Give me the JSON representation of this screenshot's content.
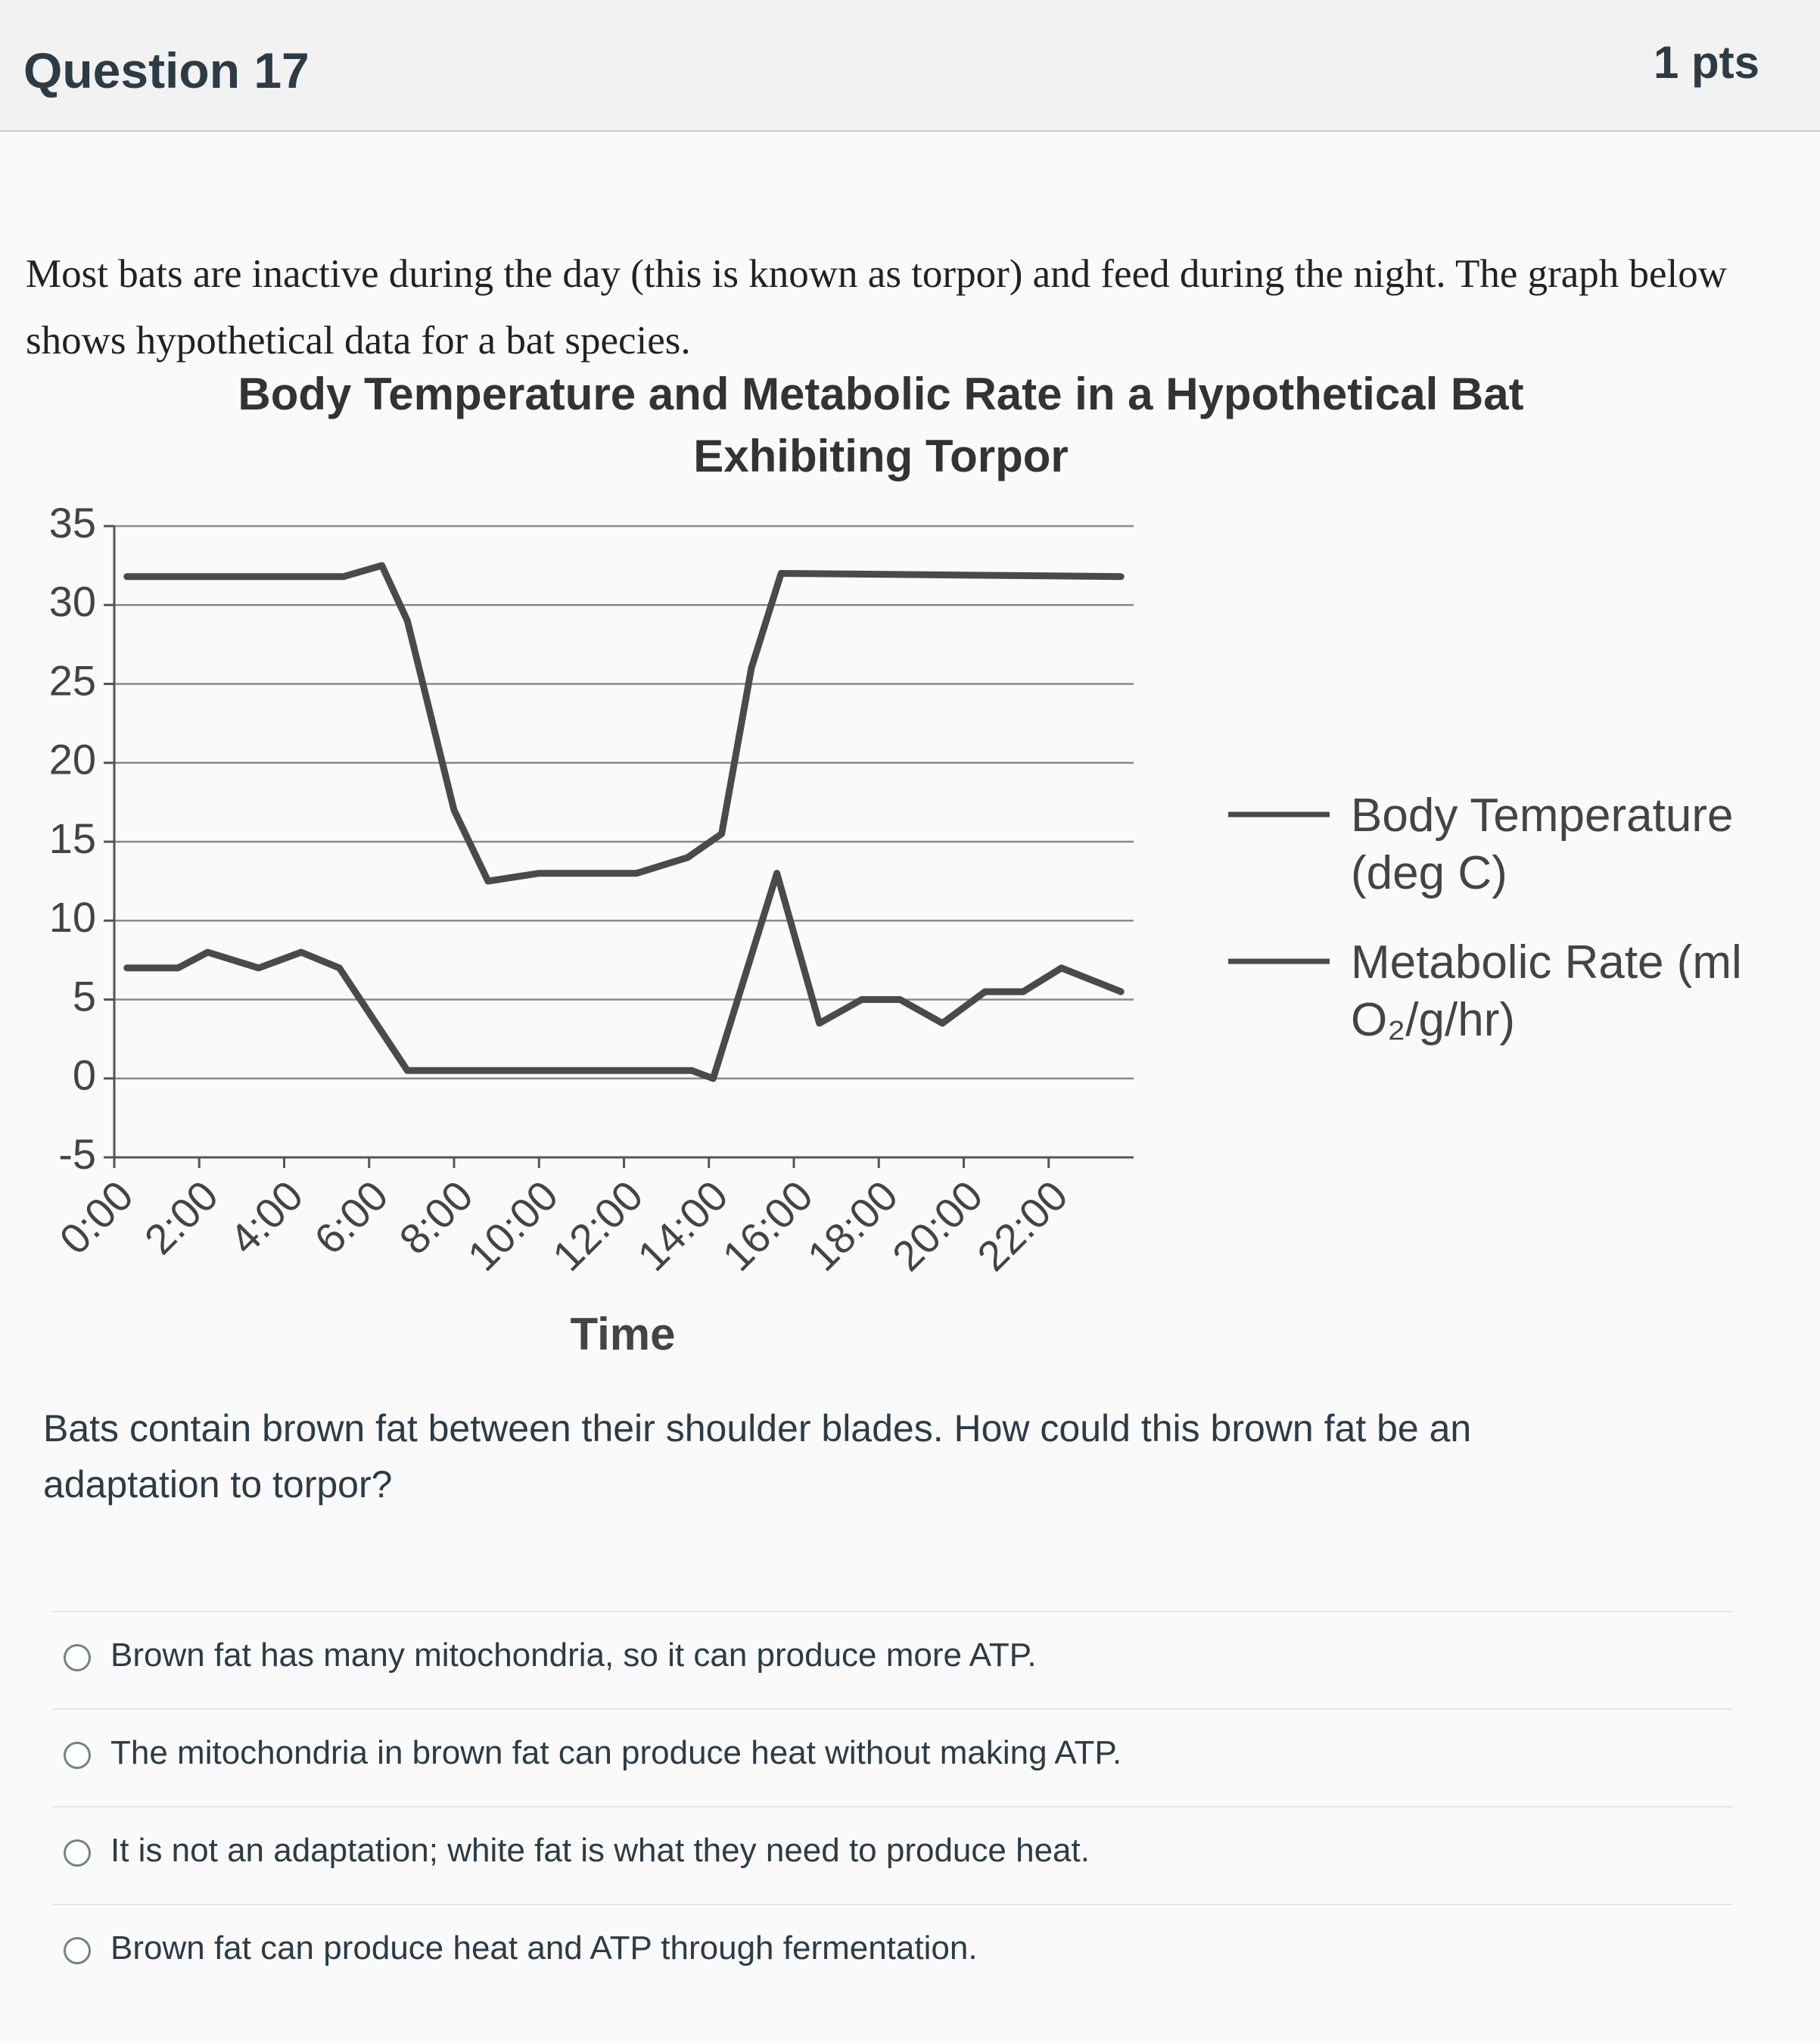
{
  "header": {
    "title": "Question 17",
    "points": "1 pts"
  },
  "intro": "Most bats are inactive during the day (this is known as torpor) and feed during the night. The graph below shows hypothetical data for a bat species.",
  "chart_data": {
    "type": "line",
    "title": "Body Temperature and Metabolic Rate in a Hypothetical Bat Exhibiting Torpor",
    "x_label": "Time",
    "xlim": [
      0,
      24
    ],
    "xticks": [
      {
        "value": 0,
        "label": "0:00"
      },
      {
        "value": 2,
        "label": "2:00"
      },
      {
        "value": 4,
        "label": "4:00"
      },
      {
        "value": 6,
        "label": "6:00"
      },
      {
        "value": 8,
        "label": "8:00"
      },
      {
        "value": 10,
        "label": "10:00"
      },
      {
        "value": 12,
        "label": "12:00"
      },
      {
        "value": 14,
        "label": "14:00"
      },
      {
        "value": 16,
        "label": "16:00"
      },
      {
        "value": 18,
        "label": "18:00"
      },
      {
        "value": 20,
        "label": "20:00"
      },
      {
        "value": 22,
        "label": "22:00"
      }
    ],
    "ylim": [
      -5,
      35
    ],
    "yticks": [
      -5,
      0,
      5,
      10,
      15,
      20,
      25,
      30,
      35
    ],
    "grid": true,
    "legend": "right",
    "series": [
      {
        "name": "Body Temperature (deg C)",
        "color": "#4a4a4a",
        "x": [
          0.3,
          5.4,
          6.3,
          6.9,
          8.0,
          8.8,
          10.0,
          12.3,
          13.5,
          14.3,
          15.0,
          15.7,
          23.7
        ],
        "values": [
          31.8,
          31.8,
          32.5,
          29,
          17,
          12.5,
          13,
          13,
          14,
          15.5,
          26,
          32,
          31.8
        ]
      },
      {
        "name": "Metabolic Rate (ml O₂/g/hr)",
        "color": "#4a4a4a",
        "x": [
          0.3,
          1.5,
          2.2,
          3.4,
          4.4,
          5.3,
          6.9,
          8.0,
          13.6,
          14.1,
          15.6,
          16.6,
          17.6,
          18.5,
          19.5,
          20.5,
          21.4,
          22.3,
          23.7
        ],
        "values": [
          7,
          7,
          8,
          7,
          8,
          7,
          0.5,
          0.5,
          0.5,
          0,
          13,
          3.5,
          5,
          5,
          3.5,
          5.5,
          5.5,
          7,
          5.5
        ]
      }
    ]
  },
  "question": "Bats contain brown fat between their shoulder blades. How could this brown fat be an adaptation to torpor?",
  "options": [
    "Brown fat has many mitochondria, so it can produce more ATP.",
    "The mitochondria in brown fat can produce heat without making ATP.",
    "It is not an adaptation; white fat is what they need to produce heat.",
    "Brown fat can produce heat and ATP through fermentation."
  ]
}
